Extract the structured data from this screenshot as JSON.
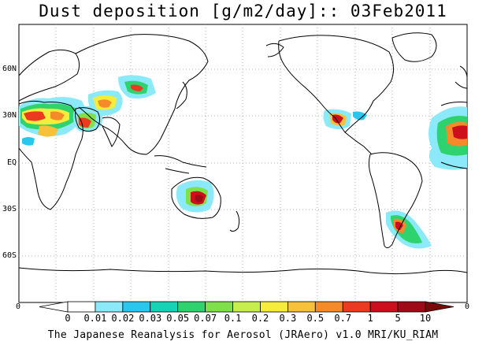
{
  "title": "Dust deposition [g/m2/day]:: 03Feb2011",
  "latitude_labels": [
    "60N",
    "30N",
    "EQ",
    "30S",
    "60S"
  ],
  "longitude_edge_labels": [
    "0",
    "0"
  ],
  "colorbar": {
    "tick_labels": [
      "0",
      "0.01",
      "0.02",
      "0.03",
      "0.05",
      "0.07",
      "0.1",
      "0.2",
      "0.3",
      "0.5",
      "0.7",
      "1",
      "5",
      "10"
    ],
    "colors": [
      "#ffffff",
      "#8be9f9",
      "#29c6ee",
      "#16d3b6",
      "#2ed36d",
      "#7ee14a",
      "#c6ee4d",
      "#f6ec3b",
      "#f7c23a",
      "#f48a2a",
      "#ec3a21",
      "#cd0f1d",
      "#9e0a16",
      "#7a0a0a"
    ],
    "arrow_low_color": "#ffffff",
    "arrow_high_color": "#7a0a0a"
  },
  "credits": "The Japanese Reanalysis for Aerosol (JRAero) v1.0 MRI/KU_RIAM",
  "map": {
    "projection": "equirectangular, centered 180°",
    "grid": "dotted every 30°",
    "regions_with_dust": [
      "Sahara / North Africa",
      "Arabian Peninsula",
      "Central Asia",
      "Taklimakan / Gobi",
      "Australia",
      "Mexico / southwestern US",
      "Patagonia",
      "West Africa (east of map edge)"
    ]
  }
}
